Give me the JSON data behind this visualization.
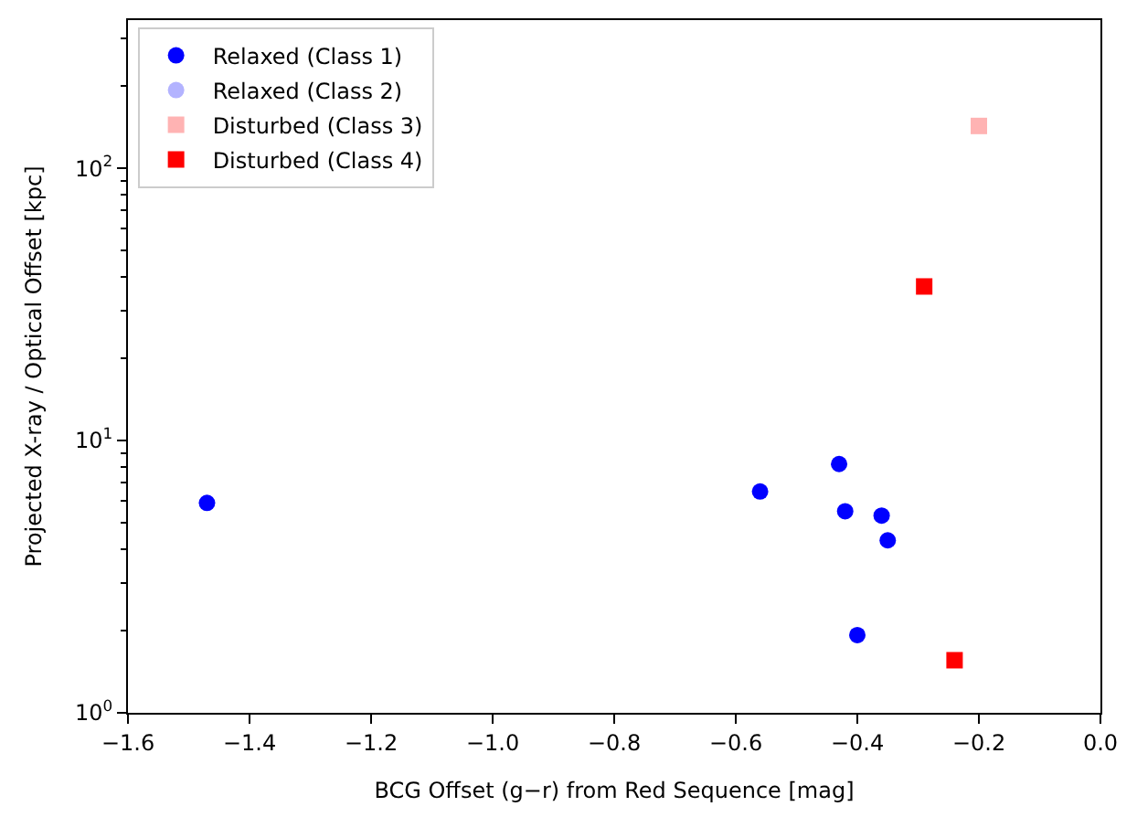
{
  "chart_data": {
    "type": "scatter",
    "xlabel": "BCG Offset (g−r) from Red Sequence [mag]",
    "ylabel": "Projected X-ray / Optical Offset [kpc]",
    "log": "y",
    "legend": "top left",
    "xlim": [
      -1.6,
      0.0
    ],
    "xticks": [
      {
        "value": -1.6,
        "label": "−1.6"
      },
      {
        "value": -1.4,
        "label": "−1.4"
      },
      {
        "value": -1.2,
        "label": "−1.2"
      },
      {
        "value": -1.0,
        "label": "−1.0"
      },
      {
        "value": -0.8,
        "label": "−0.8"
      },
      {
        "value": -0.6,
        "label": "−0.6"
      },
      {
        "value": -0.4,
        "label": "−0.4"
      },
      {
        "value": -0.2,
        "label": "−0.2"
      },
      {
        "value": 0.0,
        "label": "0.0"
      }
    ],
    "ylim": [
      1,
      350
    ],
    "yticks": [
      {
        "value": 1,
        "label": "10$^{0}$"
      },
      {
        "value": 10,
        "label": "10$^{1}$"
      },
      {
        "value": 100,
        "label": "10$^{2}$"
      }
    ],
    "series": [
      {
        "name": "Relaxed (Class 1)",
        "color": "#0000ff",
        "marker": "circle",
        "x": [
          -1.47,
          -0.56,
          -0.43,
          -0.42,
          -0.36,
          -0.35,
          -0.4
        ],
        "values": [
          5.9,
          6.5,
          8.2,
          5.5,
          5.3,
          4.3,
          1.93
        ]
      },
      {
        "name": "Relaxed (Class 2)",
        "color": "#b3b3ff",
        "marker": "circle"
      },
      {
        "name": "Disturbed (Class 3)",
        "color": "#ffb3b3",
        "marker": "square",
        "x": [
          -0.2
        ],
        "values": [
          143
        ]
      },
      {
        "name": "Disturbed (Class 4)",
        "color": "#ff0000",
        "marker": "square",
        "x": [
          -0.29,
          -0.24
        ],
        "values": [
          36.8,
          1.56
        ]
      }
    ]
  }
}
